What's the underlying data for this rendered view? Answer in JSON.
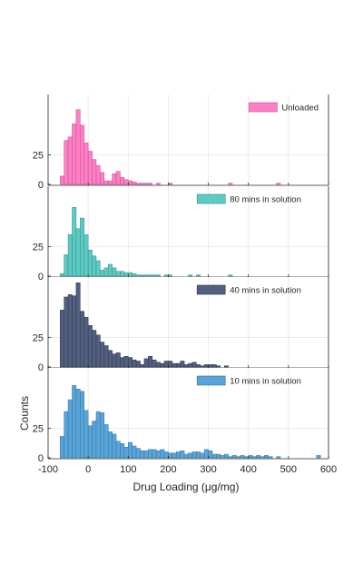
{
  "chart_data": {
    "type": "bar",
    "subtype": "stacked-histogram-panels",
    "xlabel": "Drug Loading (μg/mg)",
    "ylabel": "Counts",
    "xlim": [
      -100,
      600
    ],
    "xticks": [
      -100,
      0,
      100,
      200,
      300,
      400,
      500,
      600
    ],
    "grid": true,
    "bin_start": -70,
    "bin_width": 10,
    "panels": [
      {
        "name": "Unloaded",
        "color": "#ff7ec6",
        "edge": "#b8518c",
        "ylim": [
          0,
          72
        ],
        "yticks": [
          0,
          25
        ],
        "legend": "top-right",
        "values": [
          7,
          37,
          40,
          51,
          63,
          50,
          35,
          28,
          21,
          16,
          10,
          3,
          3,
          9,
          11,
          6,
          4,
          3,
          2,
          1,
          1,
          1,
          1,
          0,
          1,
          0,
          0,
          1,
          0,
          0,
          0,
          0,
          0,
          0,
          0,
          0,
          0,
          0,
          0,
          0,
          0,
          0,
          1,
          0,
          0,
          0,
          0,
          0,
          0,
          0,
          0,
          0,
          0,
          0,
          1
        ]
      },
      {
        "name": "80 mins in solution",
        "color": "#5ecac3",
        "edge": "#2e8a84",
        "ylim": [
          0,
          72
        ],
        "yticks": [
          0,
          25
        ],
        "legend": "top-right",
        "values": [
          2,
          18,
          35,
          58,
          40,
          49,
          35,
          22,
          17,
          13,
          5,
          7,
          10,
          7,
          4,
          4,
          3,
          3,
          2,
          1,
          1,
          1,
          1,
          1,
          1,
          0,
          1,
          1,
          0,
          0,
          0,
          0,
          1,
          0,
          1,
          0,
          0,
          0,
          0,
          0,
          0,
          0,
          1
        ]
      },
      {
        "name": "40 mins in solution",
        "color": "#525f7f",
        "edge": "#2a3450",
        "ylim": [
          0,
          72
        ],
        "yticks": [
          0,
          25
        ],
        "legend": "top-right",
        "values": [
          48,
          59,
          61,
          60,
          71,
          47,
          42,
          35,
          31,
          27,
          21,
          18,
          14,
          11,
          12,
          8,
          9,
          8,
          6,
          5,
          2,
          7,
          9,
          6,
          4,
          3,
          5,
          5,
          3,
          3,
          5,
          2,
          3,
          4,
          2,
          1,
          2,
          2,
          2,
          1,
          0,
          1
        ]
      },
      {
        "name": "10 mins in solution",
        "color": "#5aa5d8",
        "edge": "#2c6f9e",
        "ylim": [
          0,
          72
        ],
        "yticks": [
          0,
          25
        ],
        "legend": "top-right",
        "values": [
          18,
          39,
          49,
          61,
          58,
          56,
          40,
          27,
          31,
          39,
          38,
          28,
          22,
          20,
          14,
          12,
          9,
          13,
          10,
          8,
          6,
          6,
          7,
          7,
          6,
          7,
          5,
          4,
          4,
          5,
          6,
          3,
          4,
          5,
          5,
          4,
          7,
          6,
          3,
          3,
          2,
          3,
          1,
          2,
          1,
          2,
          1,
          2,
          1,
          2,
          1,
          2,
          1,
          0,
          1,
          0,
          0,
          0,
          0,
          0,
          0,
          0,
          0,
          0,
          2
        ]
      }
    ]
  }
}
